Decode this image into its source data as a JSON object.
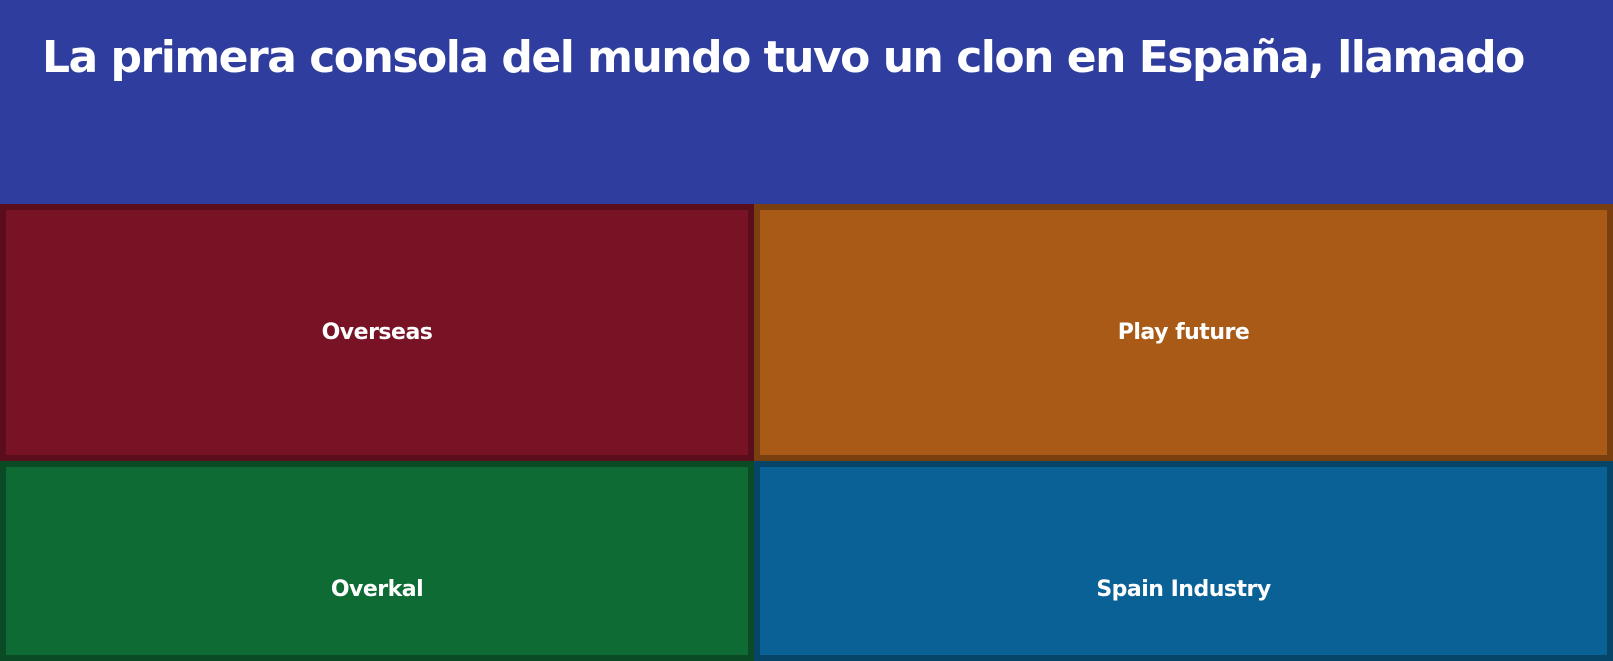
{
  "question": {
    "text": "La primera consola del mundo tuvo un clon en España, llamado"
  },
  "answers": [
    {
      "label": "Overseas",
      "color": "#771324"
    },
    {
      "label": "Play future",
      "color": "#a85a16"
    },
    {
      "label": "Overkal",
      "color": "#0f6b34"
    },
    {
      "label": "Spain Industry",
      "color": "#096196"
    }
  ],
  "theme": {
    "background": "#2f3e9e"
  }
}
